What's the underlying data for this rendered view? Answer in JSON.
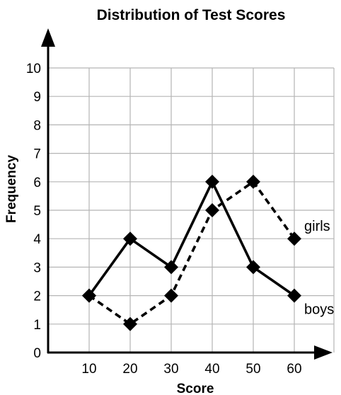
{
  "chart_data": {
    "type": "line",
    "title": "Distribution of Test Scores",
    "xlabel": "Score",
    "ylabel": "Frequency",
    "x": [
      10,
      20,
      30,
      40,
      50,
      60
    ],
    "xlim": [
      0,
      70
    ],
    "ylim": [
      0,
      10
    ],
    "yticks": [
      0,
      1,
      2,
      3,
      4,
      5,
      6,
      7,
      8,
      9,
      10
    ],
    "grid": true,
    "series": [
      {
        "name": "boys",
        "values": [
          2,
          4,
          3,
          6,
          3,
          2
        ],
        "line_style": "solid",
        "marker": "diamond",
        "color": "#000000"
      },
      {
        "name": "girls",
        "values": [
          2,
          1,
          2,
          5,
          6,
          4
        ],
        "line_style": "dashed",
        "marker": "diamond",
        "color": "#000000"
      }
    ]
  }
}
